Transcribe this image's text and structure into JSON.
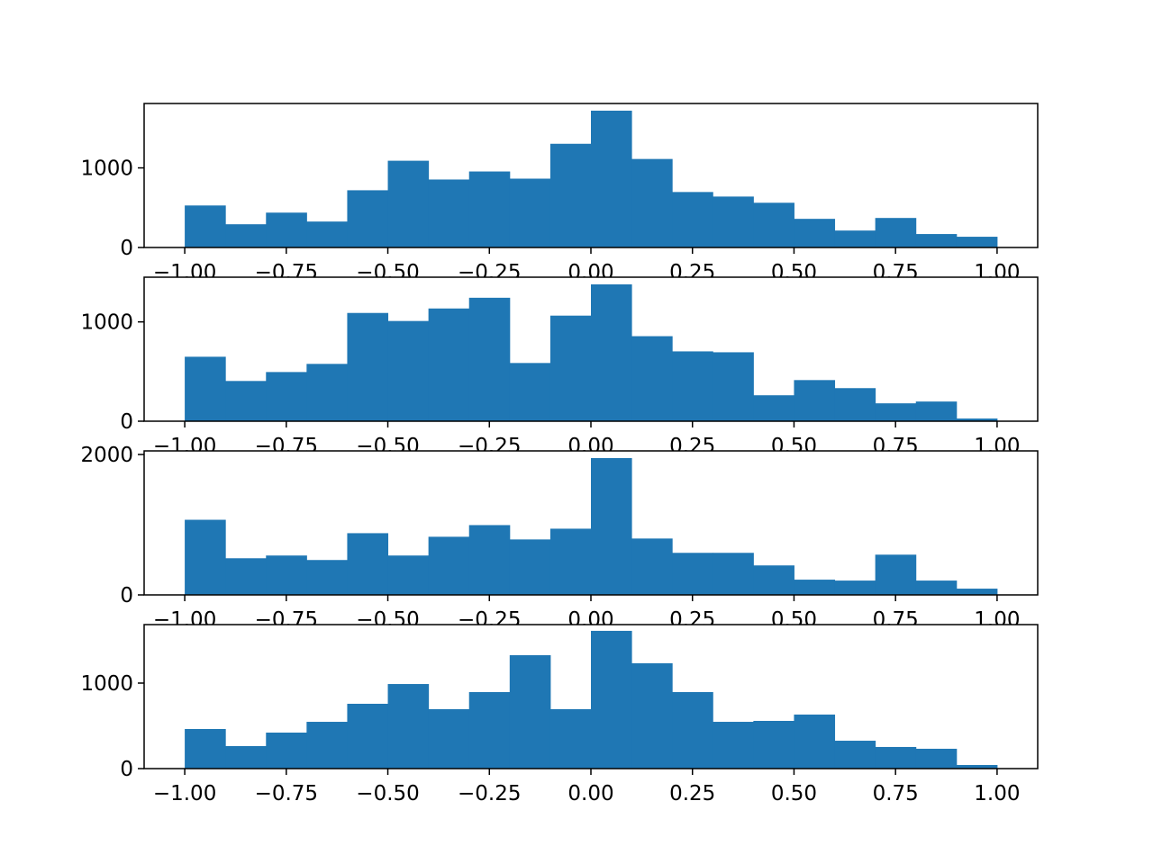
{
  "chart_data": {
    "type": "bar",
    "description_kind": "histogram",
    "bar_color": "#1f77b4",
    "bin_edges": [
      -1.0,
      -0.9,
      -0.8,
      -0.7,
      -0.6,
      -0.5,
      -0.4,
      -0.3,
      -0.2,
      -0.1,
      0.0,
      0.1,
      0.2,
      0.3,
      0.4,
      0.5,
      0.6,
      0.7,
      0.8,
      0.9,
      1.0
    ],
    "xlim": [
      -1.1,
      1.1
    ],
    "xticks": [
      -1.0,
      -0.75,
      -0.5,
      -0.25,
      0.0,
      0.25,
      0.5,
      0.75,
      1.0
    ],
    "xtick_labels": [
      "−1.00",
      "−0.75",
      "−0.50",
      "−0.25",
      "0.00",
      "0.25",
      "0.50",
      "0.75",
      "1.00"
    ],
    "subplots": [
      {
        "ylim": [
          0,
          1809
        ],
        "yticks": [
          0,
          1000
        ],
        "ytick_labels": [
          "0",
          "1000"
        ],
        "values": [
          528,
          292,
          438,
          326,
          719,
          1090,
          854,
          955,
          865,
          1303,
          1719,
          1112,
          697,
          640,
          562,
          360,
          213,
          371,
          169,
          135
        ]
      },
      {
        "ylim": [
          0,
          1450
        ],
        "yticks": [
          0,
          1000
        ],
        "ytick_labels": [
          "0",
          "1000"
        ],
        "values": [
          649,
          405,
          495,
          577,
          1090,
          1009,
          1135,
          1243,
          586,
          1063,
          1378,
          856,
          703,
          694,
          261,
          414,
          333,
          180,
          198,
          27
        ]
      },
      {
        "ylim": [
          0,
          2051
        ],
        "yticks": [
          0,
          2000
        ],
        "ytick_labels": [
          "0",
          "2000"
        ],
        "values": [
          1070,
          522,
          561,
          497,
          879,
          561,
          828,
          994,
          790,
          943,
          1949,
          803,
          599,
          599,
          420,
          217,
          204,
          573,
          204,
          89
        ]
      },
      {
        "ylim": [
          0,
          1684
        ],
        "yticks": [
          0,
          1000
        ],
        "ytick_labels": [
          "0",
          "1000"
        ],
        "values": [
          463,
          263,
          421,
          547,
          758,
          989,
          695,
          895,
          1326,
          695,
          1611,
          1232,
          895,
          547,
          558,
          632,
          326,
          253,
          232,
          42
        ]
      }
    ]
  }
}
